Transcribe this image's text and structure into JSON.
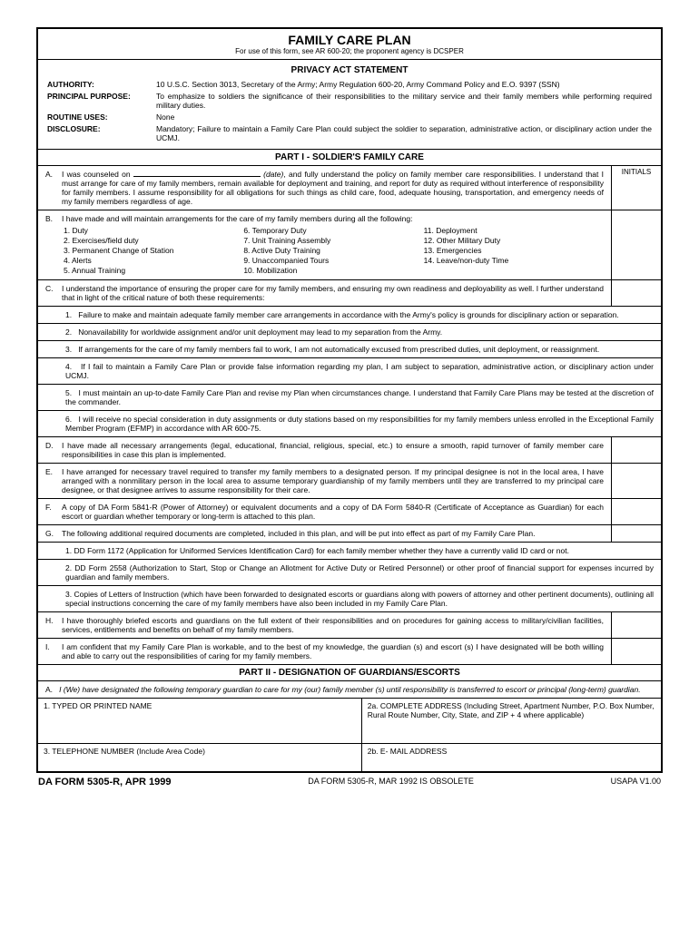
{
  "header": {
    "title": "FAMILY CARE PLAN",
    "subtitle": "For use of this form, see AR 600-20; the proponent agency is DCSPER"
  },
  "privacy": {
    "heading": "PRIVACY ACT STATEMENT",
    "authority_label": "AUTHORITY:",
    "authority_text": "10 U.S.C. Section 3013, Secretary of the Army; Army Regulation 600-20, Army Command Policy and E.O. 9397 (SSN)",
    "purpose_label": "PRINCIPAL PURPOSE:",
    "purpose_text": "To emphasize to soldiers the significance of their responsibilities to the military service and their family members while performing required military duties.",
    "routine_label": "ROUTINE USES:",
    "routine_text": "None",
    "disclosure_label": "DISCLOSURE:",
    "disclosure_text": "Mandatory; Failure to maintain a Family Care Plan could subject the soldier to separation, administrative action, or disciplinary action under the UCMJ."
  },
  "part1": {
    "heading": "PART I - SOLDIER'S FAMILY CARE",
    "initials_label": "INITIALS",
    "a_pre": "I was counseled on ",
    "a_post": " (date), and fully understand the policy on family member care responsibilities. I understand that I must arrange for care of my family members, remain available for deployment and training, and report for duty as required without interference of responsibility for family members. I assume responsibility for all obligations for such things as child care, food, adequate housing, transportation, and emergency needs of my family members regardless of age.",
    "b_text": "I have made and will maintain arrangements for the care of my family members during all the following:",
    "b_col1": [
      "1.   Duty",
      "2.   Exercises/field duty",
      "3.   Permanent Change of Station",
      "4.   Alerts",
      "5.   Annual Training"
    ],
    "b_col2": [
      "6.   Temporary Duty",
      "7.   Unit Training Assembly",
      "8.   Active Duty Training",
      "9.   Unaccompanied Tours",
      "10.  Mobilization"
    ],
    "b_col3": [
      "11.  Deployment",
      "12.  Other Military Duty",
      "13.  Emergencies",
      "14.  Leave/non-duty Time"
    ],
    "c_text": "I understand the importance of ensuring the proper care for my family members, and ensuring my own readiness and deployability as well. I further understand that in light of the critical nature of both these requirements:",
    "c1": "Failure to make and maintain adequate family member care arrangements in accordance with the Army's policy is grounds for disciplinary action or separation.",
    "c2": "Nonavailability for worldwide assignment and/or unit deployment may lead to my separation from the Army.",
    "c3": "If arrangements for the care of my family members fail to work, I am not automatically excused from prescribed duties, unit deployment, or reassignment.",
    "c4": "If I fail to maintain a Family Care Plan or provide false information regarding my plan, I am subject to separation, administrative action, or disciplinary action under UCMJ.",
    "c5": "I must maintain an up-to-date Family Care Plan and revise my Plan when circumstances change. I understand that Family Care Plans may be tested at the discretion of the commander.",
    "c6": "I will receive no special consideration in duty assignments or duty stations based on my responsibilities for my family members unless enrolled in the Exceptional Family Member Program (EFMP) in accordance with AR 600-75.",
    "d_text": "I have made all necessary arrangements (legal, educational, financial, religious, special, etc.) to ensure a smooth, rapid turnover of family member care responsibilities in case this plan is implemented.",
    "e_text": "I have arranged for necessary travel required to transfer my family members to a designated person. If my principal designee is not in the local area, I have arranged with a nonmilitary person in the local area to assume temporary guardianship of my family members until they are transferred to my principal care designee, or that designee arrives to assume responsibility for their care.",
    "f_text": "A copy of DA Form 5841-R (Power of Attorney) or equivalent documents and a copy of DA Form 5840-R (Certificate of Acceptance as Guardian) for each escort or guardian whether temporary or long-term is attached to this plan.",
    "g_text": "The following additional required documents are completed, included in this plan, and will be put into effect as part of my Family Care Plan.",
    "g1": "1. DD Form 1172 (Application for Uniformed Services Identification Card) for each family member whether they have a currently valid ID card or not.",
    "g2": "2. DD Form 2558 (Authorization to Start, Stop or Change an Allotment for Active Duty or Retired Personnel) or other proof of financial support for expenses incurred by guardian and family members.",
    "g3": "3. Copies of Letters of Instruction (which have been forwarded to designated escorts or guardians along with powers of attorney and other pertinent documents), outlining all special instructions concerning the care of my family members have also been included in my Family Care Plan.",
    "h_text": "I have thoroughly briefed escorts and guardians on the full extent of their responsibilities and on procedures for gaining access to military/civilian facilities, services, entitlements and benefits on behalf of my family members.",
    "i_text": "I am confident that my Family Care Plan is workable, and to the best of my knowledge, the guardian (s) and escort (s) I have designated will be both willing and able to carry out the responsibilities of caring for my family members."
  },
  "part2": {
    "heading": "PART II - DESIGNATION OF GUARDIANS/ESCORTS",
    "a_text": "I (We) have designated the following temporary guardian to care for my (our) family member (s) until responsibility is transferred to escort or principal (long-term) guardian.",
    "name_label": "1.   TYPED OR PRINTED NAME",
    "addr_label": "2a.  COMPLETE ADDRESS (Including Street, Apartment Number, P.O. Box Number, Rural Route Number, City, State, and ZIP + 4 where applicable)",
    "tel_label": "3.   TELEPHONE NUMBER (Include Area Code)",
    "email_label": "2b.  E- MAIL ADDRESS"
  },
  "footer": {
    "left": "DA FORM 5305-R, APR 1999",
    "center": "DA FORM 5305-R, MAR 1992 IS OBSOLETE",
    "right": "USAPA V1.00"
  }
}
